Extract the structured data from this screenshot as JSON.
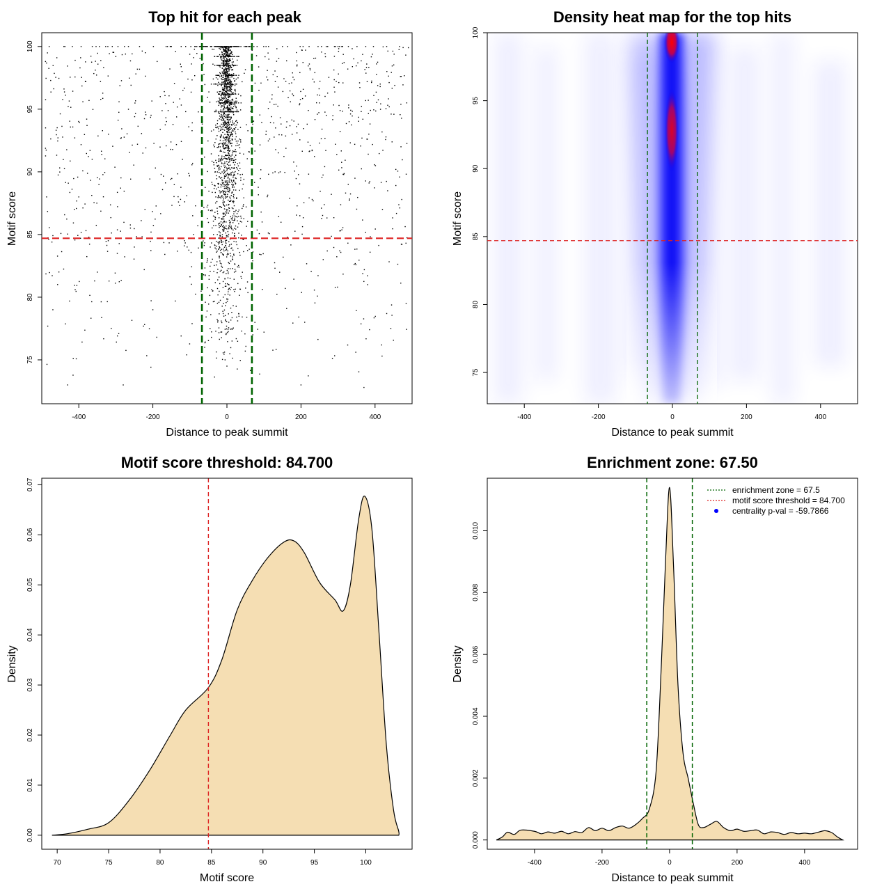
{
  "chart_data": [
    {
      "id": "scatter",
      "type": "scatter",
      "title": "Top hit for each peak",
      "xlabel": "Distance to peak summit",
      "ylabel": "Motif score",
      "xlim": [
        -500,
        500
      ],
      "ylim": [
        71.5,
        101.1
      ],
      "xticks": [
        -400,
        -200,
        0,
        200,
        400
      ],
      "yticks": [
        75,
        80,
        85,
        90,
        95,
        100
      ],
      "threshold": 84.7,
      "zone": [
        -67.5,
        67.5
      ],
      "colors": {
        "points": "#000000",
        "threshold": "#dd2222",
        "zone": "#006400"
      },
      "samples": {
        "points": [
          [
            -480,
            100
          ],
          [
            -300,
            99.2
          ],
          [
            0,
            100
          ],
          [
            -150,
            100
          ],
          [
            150,
            100
          ],
          [
            60,
            100
          ],
          [
            -60,
            100
          ],
          [
            300,
            100
          ],
          [
            -20,
            98.5
          ],
          [
            30,
            97.5
          ],
          [
            10,
            95
          ],
          [
            -10,
            92
          ],
          [
            5,
            89
          ],
          [
            -30,
            88
          ],
          [
            40,
            86
          ],
          [
            -45,
            84
          ],
          [
            20,
            82
          ],
          [
            -10,
            80
          ],
          [
            5,
            78
          ],
          [
            -5,
            75
          ],
          [
            0,
            74.5
          ],
          [
            -430,
            73
          ],
          [
            -280,
            73
          ],
          [
            370,
            72.8
          ],
          [
            200,
            73
          ],
          [
            -180,
            96
          ],
          [
            250,
            95.5
          ],
          [
            -400,
            88
          ],
          [
            420,
            87
          ],
          [
            -350,
            82
          ],
          [
            380,
            81
          ],
          [
            -470,
            79
          ],
          [
            470,
            92
          ],
          [
            -120,
            91
          ],
          [
            130,
            90
          ],
          [
            -90,
            85
          ],
          [
            95,
            86
          ],
          [
            -250,
            84
          ],
          [
            260,
            83
          ],
          [
            -320,
            93
          ],
          [
            330,
            94
          ],
          [
            -200,
            79
          ],
          [
            210,
            78
          ],
          [
            -60,
            76
          ],
          [
            70,
            77
          ]
        ]
      }
    },
    {
      "id": "heatmap",
      "type": "heatmap",
      "title": "Density heat map for the top hits",
      "xlabel": "Distance to peak summit",
      "ylabel": "Motif score",
      "xlim": [
        -500,
        500
      ],
      "ylim": [
        72.7,
        100
      ],
      "xticks": [
        -400,
        -200,
        0,
        200,
        400
      ],
      "yticks": [
        75,
        80,
        85,
        90,
        95,
        100
      ],
      "threshold": 84.7,
      "zone": [
        -67.5,
        67.5
      ],
      "colors": {
        "low": "#ffffff",
        "mid": "#0000ff",
        "high": "#ff0000",
        "threshold": "#dd2222",
        "zone": "#006400"
      },
      "peak_x": 0
    },
    {
      "id": "score_density",
      "type": "area",
      "title": "Motif score threshold: 84.700",
      "xlabel": "Motif score",
      "ylabel": "Density",
      "xlim": [
        68.5,
        104.5
      ],
      "ylim": [
        -0.0028,
        0.0713
      ],
      "xticks": [
        70,
        75,
        80,
        85,
        90,
        95,
        100
      ],
      "yticks": [
        0.0,
        0.01,
        0.02,
        0.03,
        0.04,
        0.05,
        0.06,
        0.07
      ],
      "ytick_labels": [
        "0.00",
        "0.01",
        "0.02",
        "0.03",
        "0.04",
        "0.05",
        "0.06",
        "0.07"
      ],
      "threshold": 84.7,
      "fill": "#f5deb3",
      "colors": {
        "threshold": "#dd2222"
      },
      "points": [
        [
          69.5,
          0.0
        ],
        [
          71,
          0.0003
        ],
        [
          73,
          0.0012
        ],
        [
          75,
          0.0025
        ],
        [
          77,
          0.007
        ],
        [
          79,
          0.013
        ],
        [
          81,
          0.02
        ],
        [
          82.5,
          0.025
        ],
        [
          84.7,
          0.0295
        ],
        [
          86,
          0.035
        ],
        [
          87.5,
          0.045
        ],
        [
          89,
          0.051
        ],
        [
          90.5,
          0.0555
        ],
        [
          92,
          0.0585
        ],
        [
          93,
          0.0588
        ],
        [
          94,
          0.0565
        ],
        [
          95.5,
          0.0505
        ],
        [
          97,
          0.047
        ],
        [
          97.8,
          0.0448
        ],
        [
          98.5,
          0.05
        ],
        [
          99.3,
          0.063
        ],
        [
          99.9,
          0.0677
        ],
        [
          100.6,
          0.061
        ],
        [
          101.3,
          0.04
        ],
        [
          102,
          0.018
        ],
        [
          102.7,
          0.005
        ],
        [
          103.2,
          0.0008
        ],
        [
          103.2,
          0.0
        ]
      ]
    },
    {
      "id": "distance_density",
      "type": "area",
      "title": "Enrichment zone: 67.50",
      "xlabel": "Distance to peak summit",
      "ylabel": "Density",
      "xlim": [
        -540,
        557
      ],
      "ylim": [
        -0.0003,
        0.0117
      ],
      "xticks": [
        -400,
        -200,
        0,
        200,
        400
      ],
      "yticks": [
        0.0,
        0.002,
        0.004,
        0.006,
        0.008,
        0.01
      ],
      "ytick_labels": [
        "0.000",
        "0.002",
        "0.004",
        "0.006",
        "0.008",
        "0.010"
      ],
      "zone": [
        -67.5,
        67.5
      ],
      "fill": "#f5deb3",
      "colors": {
        "zone": "#006400"
      },
      "points": [
        [
          -513,
          0.0
        ],
        [
          -495,
          0.0001
        ],
        [
          -480,
          0.00025
        ],
        [
          -460,
          0.00018
        ],
        [
          -440,
          0.00032
        ],
        [
          -400,
          0.00028
        ],
        [
          -380,
          0.0002
        ],
        [
          -360,
          0.00026
        ],
        [
          -340,
          0.00022
        ],
        [
          -320,
          0.00028
        ],
        [
          -300,
          0.0002
        ],
        [
          -280,
          0.00027
        ],
        [
          -260,
          0.00024
        ],
        [
          -240,
          0.0004
        ],
        [
          -220,
          0.0003
        ],
        [
          -200,
          0.00038
        ],
        [
          -180,
          0.0003
        ],
        [
          -160,
          0.0004
        ],
        [
          -140,
          0.00045
        ],
        [
          -120,
          0.00038
        ],
        [
          -100,
          0.0005
        ],
        [
          -80,
          0.0007
        ],
        [
          -60,
          0.001
        ],
        [
          -40,
          0.0022
        ],
        [
          -25,
          0.0055
        ],
        [
          -12,
          0.009
        ],
        [
          0,
          0.0114
        ],
        [
          12,
          0.0088
        ],
        [
          25,
          0.005
        ],
        [
          40,
          0.0028
        ],
        [
          55,
          0.002
        ],
        [
          70,
          0.0012
        ],
        [
          85,
          0.0005
        ],
        [
          100,
          0.0004
        ],
        [
          120,
          0.0005
        ],
        [
          140,
          0.0006
        ],
        [
          160,
          0.0004
        ],
        [
          180,
          0.0003
        ],
        [
          200,
          0.00035
        ],
        [
          220,
          0.00028
        ],
        [
          240,
          0.0003
        ],
        [
          260,
          0.00032
        ],
        [
          280,
          0.0002
        ],
        [
          300,
          0.00026
        ],
        [
          320,
          0.00024
        ],
        [
          340,
          0.00018
        ],
        [
          360,
          0.00024
        ],
        [
          380,
          0.0002
        ],
        [
          400,
          0.00022
        ],
        [
          420,
          0.0002
        ],
        [
          440,
          0.00025
        ],
        [
          460,
          0.0003
        ],
        [
          480,
          0.00024
        ],
        [
          497,
          0.0001
        ],
        [
          513,
          0.0
        ]
      ],
      "legend": {
        "position": "top-right",
        "entries": [
          {
            "label": "enrichment zone = 67.5",
            "color": "#006400",
            "style": "dotted"
          },
          {
            "label": "motif score threshold = 84.700",
            "color": "#dd2222",
            "style": "dotted"
          },
          {
            "label": "centrality p-val = -59.7866",
            "color": "#0000ff",
            "style": "dot"
          }
        ]
      }
    }
  ]
}
